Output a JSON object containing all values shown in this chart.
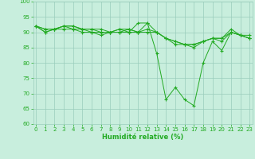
{
  "xlabel": "Humidité relative (%)",
  "bg_color": "#c8eedd",
  "grid_color": "#99ccbb",
  "line_color": "#22aa22",
  "series": [
    [
      92,
      90,
      91,
      92,
      91,
      91,
      90,
      89,
      90,
      91,
      90,
      93,
      93,
      83,
      68,
      72,
      68,
      66,
      80,
      87,
      84,
      90,
      89,
      88
    ],
    [
      92,
      90,
      91,
      92,
      92,
      91,
      91,
      90,
      90,
      91,
      91,
      90,
      93,
      90,
      88,
      86,
      86,
      85,
      87,
      88,
      87,
      90,
      89,
      88
    ],
    [
      92,
      91,
      91,
      92,
      92,
      91,
      91,
      91,
      90,
      90,
      91,
      90,
      91,
      90,
      88,
      87,
      86,
      86,
      87,
      88,
      88,
      91,
      89,
      89
    ],
    [
      92,
      91,
      91,
      91,
      91,
      90,
      90,
      90,
      90,
      90,
      90,
      90,
      90,
      90,
      88,
      87,
      86,
      86,
      87,
      88,
      88,
      90,
      89,
      88
    ]
  ],
  "ylim": [
    60,
    100
  ],
  "xlim": [
    -0.3,
    23.3
  ],
  "yticks": [
    60,
    65,
    70,
    75,
    80,
    85,
    90,
    95,
    100
  ],
  "xticks": [
    0,
    1,
    2,
    3,
    4,
    5,
    6,
    7,
    8,
    9,
    10,
    11,
    12,
    13,
    14,
    15,
    16,
    17,
    18,
    19,
    20,
    21,
    22,
    23
  ],
  "tick_fontsize": 5.0,
  "xlabel_fontsize": 6.0
}
